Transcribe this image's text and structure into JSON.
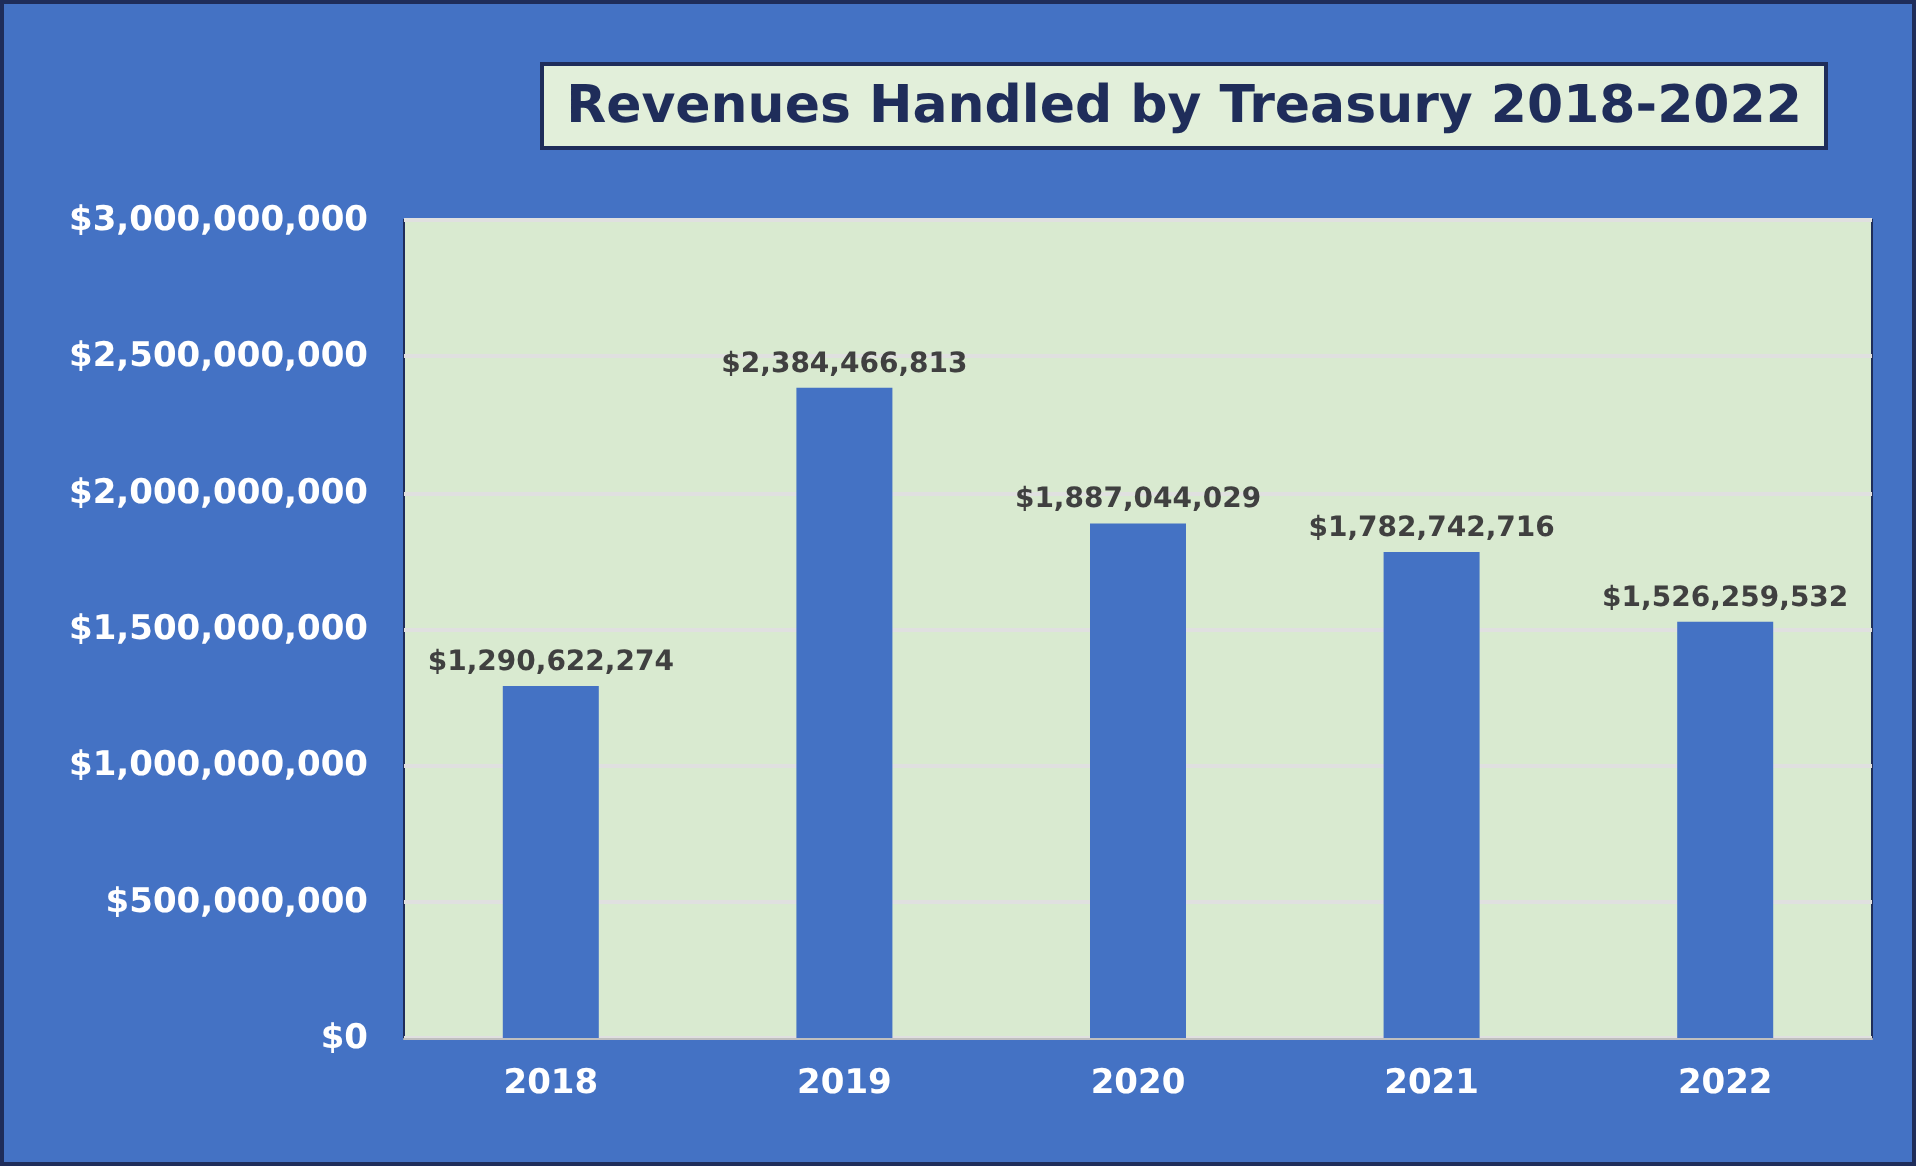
{
  "chart_data": {
    "type": "bar",
    "title": "Revenues Handled by Treasury 2018-2022",
    "categories": [
      "2018",
      "2019",
      "2020",
      "2021",
      "2022"
    ],
    "values": [
      1290622274,
      2384466813,
      1887044029,
      1782742716,
      1526259532
    ],
    "value_labels": [
      "$1,290,622,274",
      "$2,384,466,813",
      "$1,887,044,029",
      "$1,782,742,716",
      "$1,526,259,532"
    ],
    "color": "#4472c4",
    "ylim": [
      0,
      3000000000
    ],
    "yticks": [
      {
        "value": 0,
        "label": "$0"
      },
      {
        "value": 500000000,
        "label": "$500,000,000"
      },
      {
        "value": 1000000000,
        "label": "$1,000,000,000"
      },
      {
        "value": 1500000000,
        "label": "$1,500,000,000"
      },
      {
        "value": 2000000000,
        "label": "$2,000,000,000"
      },
      {
        "value": 2500000000,
        "label": "$2,500,000,000"
      },
      {
        "value": 3000000000,
        "label": "$3,000,000,000"
      }
    ],
    "grid": "y"
  }
}
